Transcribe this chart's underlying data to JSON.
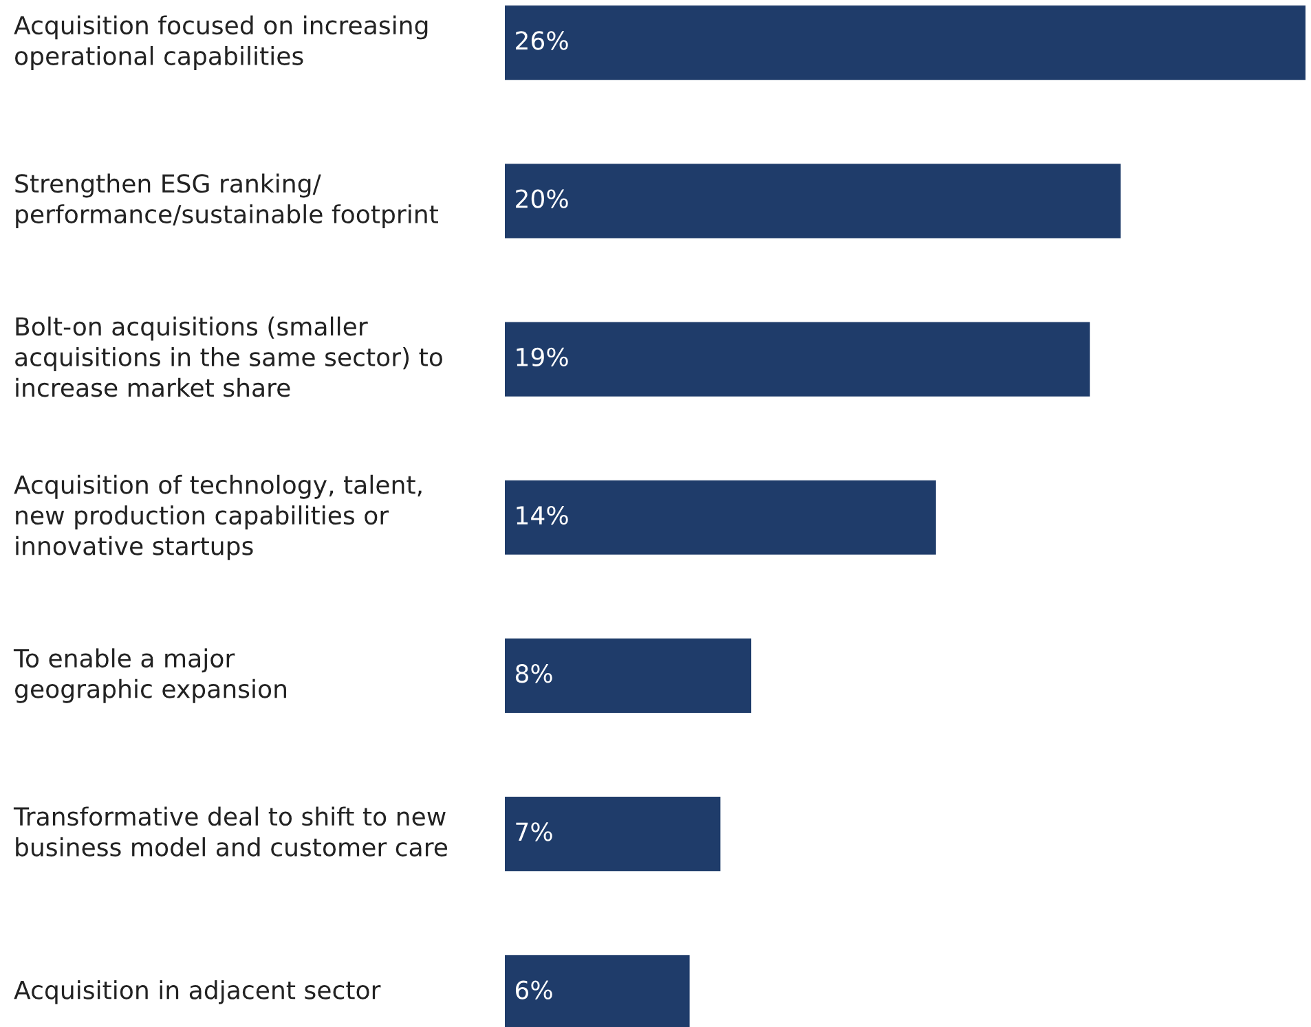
{
  "chart_data": {
    "type": "bar",
    "orientation": "horizontal",
    "categories": [
      "Acquisition focused on increasing\noperational capabilities",
      "Strengthen ESG ranking/\nperformance/sustainable footprint",
      "Bolt-on acquisitions (smaller\nacquisitions in the same sector) to\nincrease market share",
      "Acquisition of technology, talent,\nnew production capabilities or\ninnovative startups",
      "To enable a major\ngeographic expansion",
      "Transformative deal to shift to new\nbusiness model and customer care",
      "Acquisition in adjacent sector"
    ],
    "values": [
      26,
      20,
      19,
      14,
      8,
      7,
      6
    ],
    "value_labels": [
      "26%",
      "20%",
      "19%",
      "14%",
      "8%",
      "7%",
      "6%"
    ],
    "color": "#1f3c6a",
    "xlim": [
      0,
      26
    ]
  }
}
